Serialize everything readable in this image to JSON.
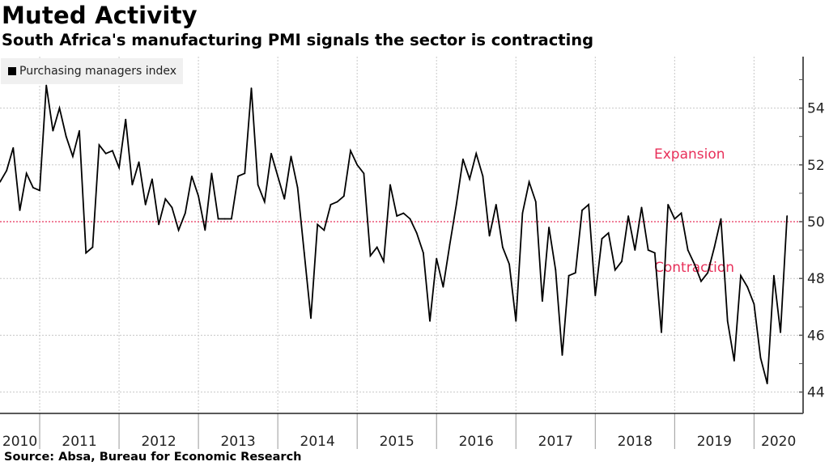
{
  "header": {
    "title": "Muted Activity",
    "subtitle": "South Africa's manufacturing PMI signals the sector is contracting"
  },
  "footer": {
    "source": "Source: Absa, Bureau for Economic Research"
  },
  "colors": {
    "line": "#000000",
    "threshold": "#e8305a",
    "grid": "#c8c8c8",
    "legend_bg": "#f0f0f0"
  },
  "chart_data": {
    "type": "line",
    "title": "Muted Activity",
    "subtitle": "South Africa's manufacturing PMI signals the sector is contracting",
    "legend": {
      "position": "top-left",
      "entries": [
        "Purchasing managers index"
      ]
    },
    "x_frequency": "monthly",
    "x_start": "2010-07",
    "x_tick_labels": [
      "2010",
      "2011",
      "2012",
      "2013",
      "2014",
      "2015",
      "2016",
      "2017",
      "2018",
      "2019",
      "2020"
    ],
    "y_ticks": [
      44,
      46,
      48,
      50,
      52,
      54
    ],
    "ylim": [
      43.3,
      55.8
    ],
    "y_axis_side": "right",
    "grid": true,
    "reference_line": {
      "value": 50,
      "style": "dotted",
      "color": "#e8305a"
    },
    "annotations": [
      {
        "text": "Expansion",
        "value": 52.4
      },
      {
        "text": "Contraction",
        "value": 48.4
      }
    ],
    "series": [
      {
        "name": "Purchasing managers index",
        "values": [
          51.4,
          51.8,
          52.6,
          50.4,
          51.7,
          51.2,
          51.1,
          54.8,
          53.2,
          54.0,
          53.0,
          52.3,
          53.2,
          48.9,
          49.1,
          52.7,
          52.4,
          52.5,
          51.9,
          53.6,
          51.3,
          52.1,
          50.6,
          51.5,
          49.9,
          50.8,
          50.5,
          49.7,
          50.3,
          51.6,
          50.9,
          49.7,
          51.7,
          50.1,
          50.1,
          50.1,
          51.6,
          51.7,
          54.7,
          51.3,
          50.7,
          52.4,
          51.6,
          50.8,
          52.3,
          51.2,
          48.9,
          46.6,
          49.9,
          49.7,
          50.6,
          50.7,
          50.9,
          52.5,
          52.0,
          51.7,
          48.8,
          49.1,
          48.6,
          51.3,
          50.2,
          50.3,
          50.1,
          49.6,
          48.9,
          46.5,
          48.7,
          47.7,
          49.2,
          50.6,
          52.2,
          51.5,
          52.4,
          51.6,
          49.5,
          50.6,
          49.1,
          48.5,
          46.5,
          50.3,
          51.4,
          50.7,
          47.2,
          49.8,
          48.3,
          45.3,
          48.1,
          48.2,
          50.4,
          50.6,
          47.4,
          49.4,
          49.6,
          48.3,
          48.6,
          50.2,
          49.0,
          50.5,
          49.0,
          48.9,
          46.1,
          50.6,
          50.1,
          50.3,
          49.0,
          48.5,
          47.9,
          48.2,
          49.1,
          50.1,
          46.5,
          45.1,
          48.1,
          47.7,
          47.1,
          45.2,
          44.3,
          48.1,
          46.1,
          50.2
        ]
      }
    ]
  }
}
